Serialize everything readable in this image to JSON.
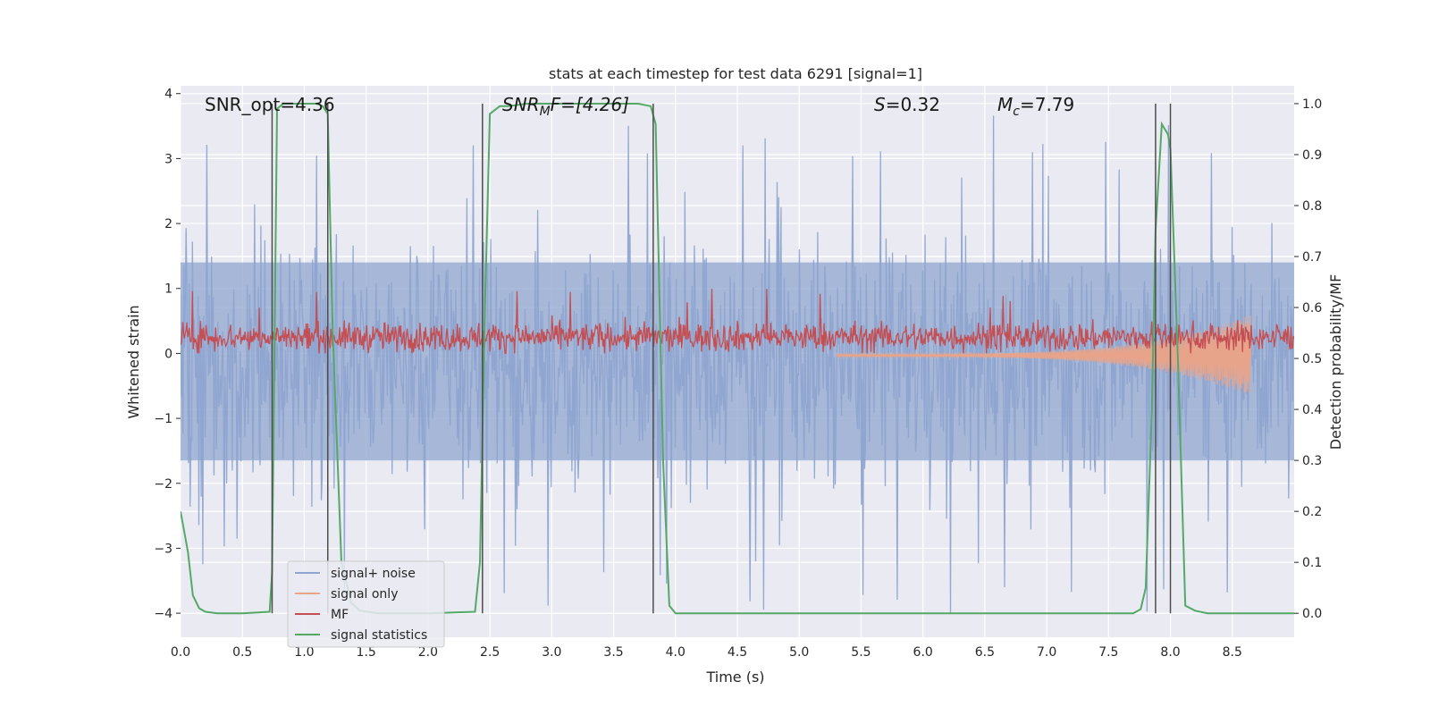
{
  "chart_data": {
    "type": "line",
    "title": "stats at each timestep for test data 6291 [signal=1]",
    "xlabel": "Time (s)",
    "ylabel_left": "Whitened strain",
    "ylabel_right": "Detection probability/MF",
    "xlim": [
      0,
      9
    ],
    "ylim_left": [
      -4.37,
      4.12
    ],
    "ylim_right": [
      -0.047,
      1.035
    ],
    "xticks": [
      "0.0",
      "0.5",
      "1.0",
      "1.5",
      "2.0",
      "2.5",
      "3.0",
      "3.5",
      "4.0",
      "4.5",
      "5.0",
      "5.5",
      "6.0",
      "6.5",
      "7.0",
      "7.5",
      "8.0",
      "8.5"
    ],
    "yticks_left": [
      "4",
      "3",
      "2",
      "1",
      "0",
      "−1",
      "−2",
      "−3",
      "−4"
    ],
    "yticks_right": [
      "1.0",
      "0.9",
      "0.8",
      "0.7",
      "0.6",
      "0.5",
      "0.4",
      "0.3",
      "0.2",
      "0.1",
      "0.0"
    ],
    "grid": true,
    "legend_position": "lower-left",
    "annotations": {
      "snr_opt": "SNR_opt=4.36",
      "snr_mf_base": "SNR",
      "snr_mf_sub": "M",
      "snr_mf_rest": "F=[4.26]",
      "s_base": "S",
      "s_rest": "=0.32",
      "mc_base": "M",
      "mc_sub": "c",
      "mc_rest": "=7.79"
    },
    "vlines": [
      0.74,
      1.19,
      2.44,
      3.82,
      7.88,
      8.0
    ],
    "series": [
      {
        "name": "signal+ noise",
        "color": "#8fa5cf",
        "axis": "left",
        "style": "noise",
        "band_upper": 1.4,
        "band_lower": -1.65,
        "peak_max": 3.7,
        "trough_min": -4.0
      },
      {
        "name": "signal only",
        "color": "#e8a48a",
        "axis": "left",
        "style": "chirp",
        "start_x": 5.3,
        "end_x": 8.65,
        "final_amplitude": 0.6
      },
      {
        "name": "MF",
        "color": "#c44e52",
        "axis": "left",
        "style": "mf",
        "center": 0.25,
        "spread": 0.2,
        "max": 1.0,
        "min": 0.0
      },
      {
        "name": "signal statistics",
        "color": "#55a868",
        "axis": "right",
        "style": "line",
        "x": [
          0,
          0.03,
          0.06,
          0.1,
          0.15,
          0.2,
          0.3,
          0.5,
          0.72,
          0.74,
          0.78,
          0.83,
          0.9,
          1.0,
          1.1,
          1.15,
          1.19,
          1.23,
          1.3,
          1.38,
          1.45,
          1.6,
          2.0,
          2.38,
          2.42,
          2.46,
          2.5,
          2.58,
          2.65,
          2.8,
          3.0,
          3.4,
          3.7,
          3.8,
          3.84,
          3.9,
          3.95,
          4.0,
          4.2,
          5.0,
          6.0,
          7.0,
          7.7,
          7.76,
          7.8,
          7.85,
          7.88,
          7.93,
          7.98,
          8.0,
          8.06,
          8.12,
          8.2,
          8.3,
          8.6,
          9.0
        ],
        "y": [
          0.2,
          0.16,
          0.12,
          0.035,
          0.01,
          0.003,
          0.0,
          0.0,
          0.003,
          0.08,
          0.99,
          1.0,
          1.0,
          1.0,
          1.0,
          0.995,
          0.98,
          0.55,
          0.1,
          0.02,
          0.005,
          0.0,
          0.0,
          0.003,
          0.1,
          0.6,
          0.98,
          0.995,
          0.995,
          1.0,
          1.0,
          1.0,
          1.0,
          0.995,
          0.96,
          0.3,
          0.015,
          0.0,
          0.0,
          0.0,
          0.0,
          0.0,
          0.0,
          0.008,
          0.05,
          0.4,
          0.75,
          0.96,
          0.94,
          0.91,
          0.5,
          0.015,
          0.005,
          0.0,
          0.0,
          0.0
        ]
      }
    ]
  }
}
